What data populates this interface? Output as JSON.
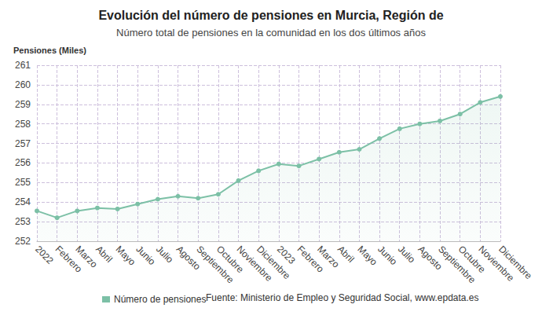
{
  "chart_data": {
    "type": "line",
    "title": "Evolución del número de pensiones en Murcia, Región de",
    "subtitle": "Número total de pensiones en la comunidad en los dos últimos años",
    "y_label": "Pensiones (Miles)",
    "annotations": [
      "Fuente: Ministerio de Empleo y Seguridad Social, www.epdata.es"
    ],
    "categories": [
      "2022",
      "Febrero",
      "Marzo",
      "Abril",
      "Mayo",
      "Junio",
      "Julio",
      "Agosto",
      "Septiembre",
      "Octubre",
      "Noviembre",
      "Diciembre",
      "2023",
      "Febrero",
      "Marzo",
      "Abril",
      "Mayo",
      "Junio",
      "Julio",
      "Agosto",
      "Septiembre",
      "Octubre",
      "Noviembre",
      "Diciembre"
    ],
    "series": [
      {
        "name": "Número de pensiones",
        "color": "#7cc0a6",
        "marker": "circle",
        "line_style": "solid",
        "values": [
          253.55,
          253.2,
          253.55,
          253.7,
          253.65,
          253.9,
          254.15,
          254.3,
          254.2,
          254.4,
          255.1,
          255.6,
          255.95,
          255.85,
          256.2,
          256.55,
          256.7,
          257.25,
          257.75,
          258.0,
          258.15,
          258.5,
          259.1,
          259.4
        ]
      }
    ],
    "ylim": [
      252,
      261
    ],
    "yticks": [
      252,
      253,
      254,
      255,
      256,
      257,
      258,
      259,
      260,
      261
    ],
    "grid": true,
    "legend": "bottom"
  }
}
